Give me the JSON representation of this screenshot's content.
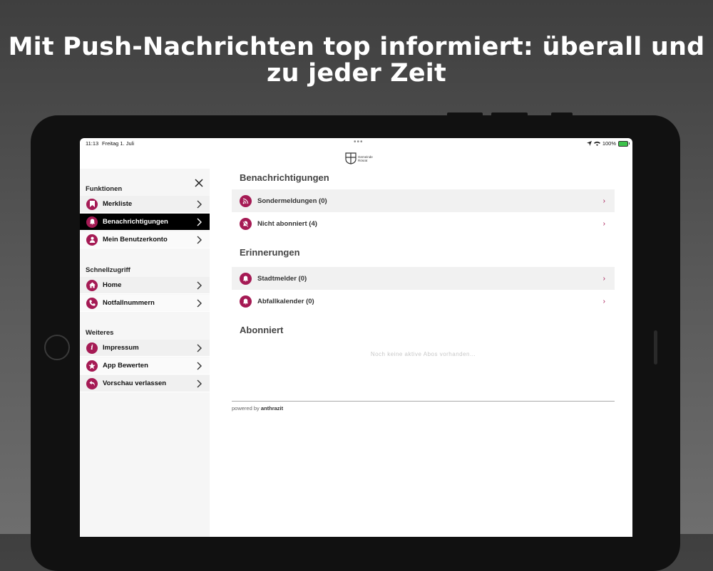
{
  "headline": {
    "line1": "Mit Push-Nachrichten top informiert: überall und",
    "line2": "zu jeder Zeit"
  },
  "status_bar": {
    "time": "11:13",
    "date": "Freitag 1. Juli",
    "battery": "100%"
  },
  "logo": {
    "line1": "Gemeinde",
    "line2": "Rösrat"
  },
  "sidebar": {
    "sections": [
      {
        "title": "Funktionen",
        "items": [
          {
            "label": "Merkliste",
            "icon": "bookmark-icon"
          },
          {
            "label": "Benachrichtigungen",
            "icon": "bell-icon",
            "active": true
          },
          {
            "label": "Mein Benutzerkonto",
            "icon": "user-icon"
          }
        ]
      },
      {
        "title": "Schnellzugriff",
        "items": [
          {
            "label": "Home",
            "icon": "home-icon"
          },
          {
            "label": "Notfallnummern",
            "icon": "phone-icon"
          }
        ]
      },
      {
        "title": "Weiteres",
        "items": [
          {
            "label": "Impressum",
            "icon": "info-icon"
          },
          {
            "label": "App Bewerten",
            "icon": "star-icon"
          },
          {
            "label": "Vorschau verlassen",
            "icon": "back-arrow-icon"
          }
        ]
      }
    ]
  },
  "main": {
    "sections": [
      {
        "title": "Benachrichtigungen",
        "rows": [
          {
            "label": "Sondermeldungen (0)",
            "icon": "broadcast-icon"
          },
          {
            "label": "Nicht abonniert (4)",
            "icon": "bell-off-icon"
          }
        ]
      },
      {
        "title": "Erinnerungen",
        "rows": [
          {
            "label": "Stadtmelder (0)",
            "icon": "bell-icon"
          },
          {
            "label": "Abfallkalender (0)",
            "icon": "bell-icon"
          }
        ]
      },
      {
        "title": "Abonniert",
        "empty_text": "Noch keine aktive Abos vorhanden..."
      }
    ],
    "footer": {
      "powered_prefix": "powered by",
      "powered_brand": "anthrazit"
    }
  },
  "colors": {
    "accent": "#a51a54",
    "active_bg": "#000000"
  }
}
